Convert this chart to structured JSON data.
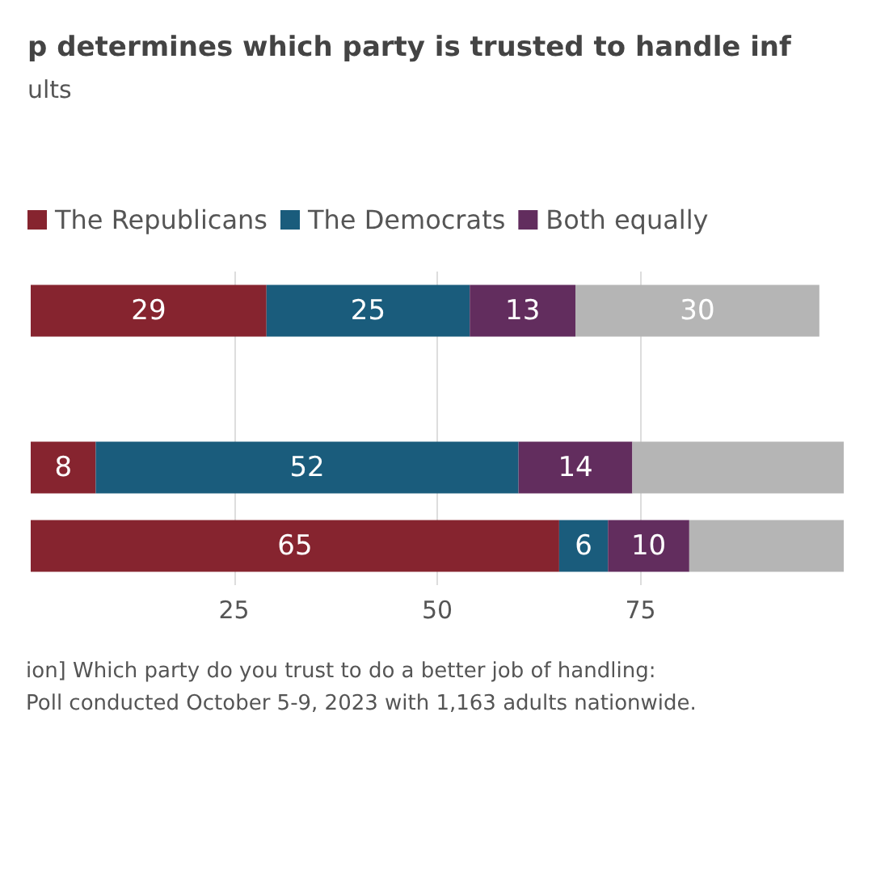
{
  "chart_data": {
    "type": "bar",
    "orientation": "horizontal",
    "stacked": true,
    "title": "p determines which party is trusted to handle inf",
    "subtitle": "ults",
    "categories": [
      null,
      null,
      null,
      null
    ],
    "series": [
      {
        "name": "The Republicans",
        "color": "#86242f",
        "values": [
          29,
          null,
          8,
          65
        ],
        "value_labels": [
          "29",
          null,
          "8",
          "65"
        ]
      },
      {
        "name": "The Democrats",
        "color": "#1a5c7c",
        "values": [
          25,
          null,
          52,
          6
        ],
        "value_labels": [
          "25",
          null,
          "52",
          "6"
        ]
      },
      {
        "name": "Both equally",
        "color": "#622d5e",
        "values": [
          13,
          null,
          14,
          10
        ],
        "value_labels": [
          "13",
          null,
          "14",
          "10"
        ]
      },
      {
        "color": "#b5b5b5",
        "values": [
          30,
          null,
          26,
          19
        ],
        "value_labels": [
          "30",
          null,
          null,
          null
        ]
      }
    ],
    "xlim": [
      0,
      100
    ],
    "xticks": [
      25,
      50,
      75
    ],
    "grid": "x",
    "legend": "top left",
    "annotations": [
      "ion] Which party do you trust to do a better job of handling:",
      "Poll conducted October 5-9, 2023 with 1,163 adults nationwide."
    ]
  }
}
